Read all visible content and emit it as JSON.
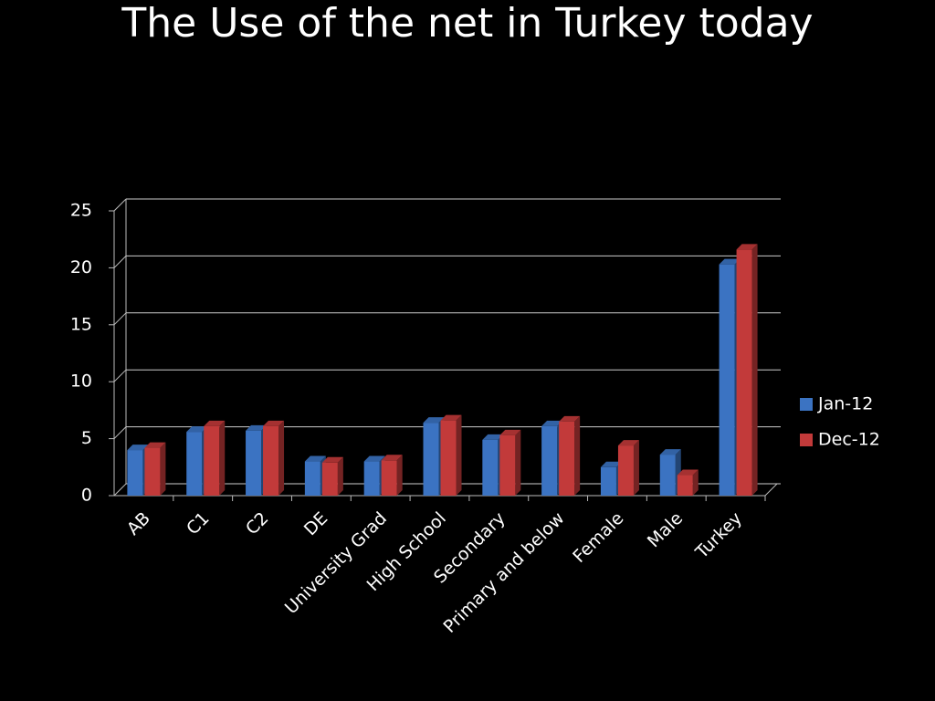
{
  "chart_data": {
    "type": "bar",
    "title": "The Use of the net in Turkey today",
    "categories": [
      "AB",
      "C1",
      "C2",
      "DE",
      "University Grad",
      "High School",
      "Secondary",
      "Primary and below",
      "Female",
      "Male",
      "Turkey"
    ],
    "series": [
      {
        "name": "Jan-12",
        "color": "#3b73c2",
        "values": [
          4.0,
          5.6,
          5.7,
          3.0,
          3.0,
          6.4,
          4.9,
          6.1,
          2.5,
          3.6,
          20.3
        ]
      },
      {
        "name": "Dec-12",
        "color": "#c23a3a",
        "values": [
          4.2,
          6.1,
          6.1,
          2.9,
          3.1,
          6.6,
          5.3,
          6.5,
          4.4,
          1.8,
          21.6
        ]
      }
    ],
    "ylim": [
      0,
      25
    ],
    "yticks": [
      0,
      5,
      10,
      15,
      20,
      25
    ],
    "grid": true,
    "legend": "right"
  }
}
